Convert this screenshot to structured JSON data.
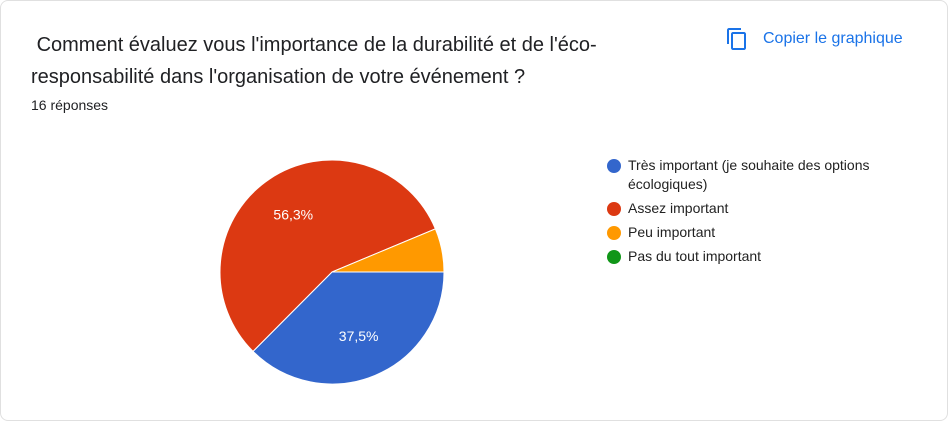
{
  "title": " Comment évaluez vous l'importance de la durabilité et de l'éco-responsabilité dans l'organisation de votre événement ?",
  "response_count": "16 réponses",
  "copy_button": {
    "label": "Copier le graphique",
    "icon": "copy-icon"
  },
  "colors": {
    "accent": "#1a73e8"
  },
  "chart_data": {
    "type": "pie",
    "title": "",
    "slices": [
      {
        "label": "Très important (je souhaite des options écologiques)",
        "value": 37.5,
        "display": "37,5%",
        "color": "#3366cc"
      },
      {
        "label": "Assez important",
        "value": 56.3,
        "display": "56,3%",
        "color": "#dc3912"
      },
      {
        "label": "Peu important",
        "value": 6.3,
        "display": "",
        "color": "#ff9900"
      },
      {
        "label": "Pas du tout important",
        "value": 0,
        "display": "",
        "color": "#109618"
      }
    ],
    "legend_position": "right"
  }
}
